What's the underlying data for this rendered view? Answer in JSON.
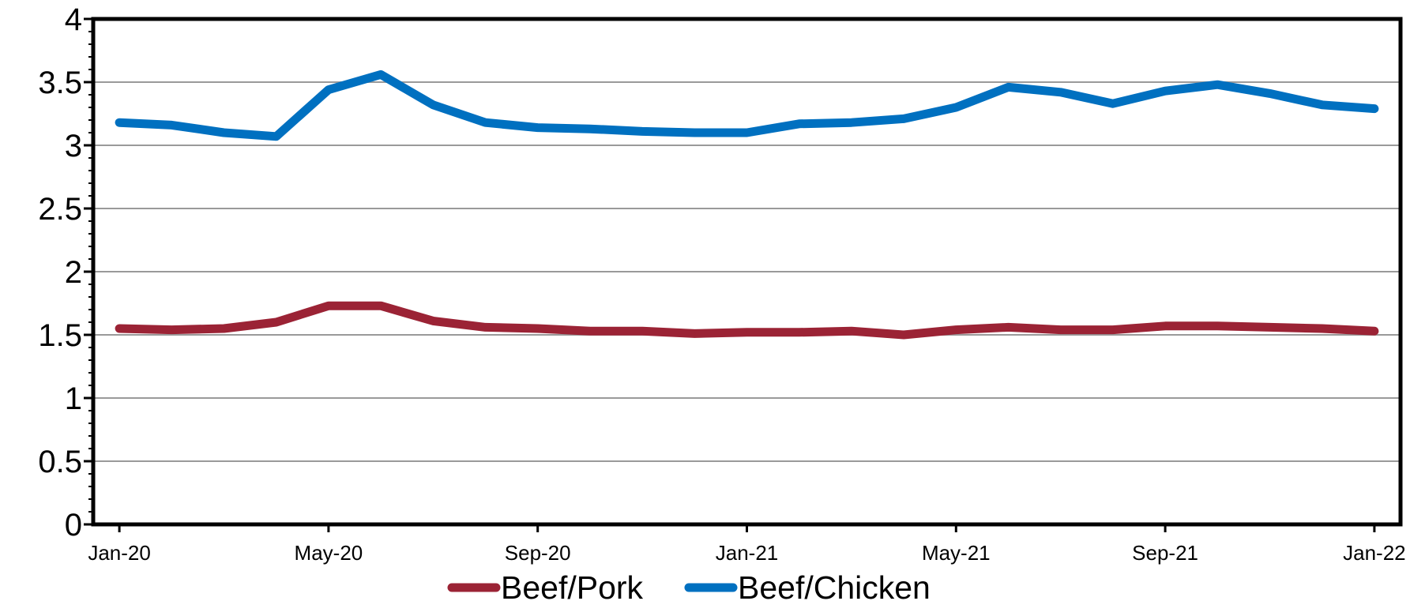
{
  "chart_data": {
    "type": "line",
    "title": "",
    "xlabel": "",
    "ylabel": "",
    "ylim": [
      0,
      4
    ],
    "yticks": [
      "0",
      "0.5",
      "1",
      "1.5",
      "2",
      "2.5",
      "3",
      "3.5",
      "4"
    ],
    "x_tick_labels": [
      "Jan-20",
      "May-20",
      "Sep-20",
      "Jan-21",
      "May-21",
      "Sep-21",
      "Jan-22"
    ],
    "x_tick_dates": [
      "2020-01",
      "2020-05",
      "2020-09",
      "2021-01",
      "2021-05",
      "2021-09",
      "2022-01"
    ],
    "x": [
      "2020-01",
      "2020-02",
      "2020-03",
      "2020-04",
      "2020-05",
      "2020-06",
      "2020-07",
      "2020-08",
      "2020-09",
      "2020-10",
      "2020-11",
      "2020-12",
      "2021-01",
      "2021-02",
      "2021-03",
      "2021-04",
      "2021-05",
      "2021-06",
      "2021-07",
      "2021-08",
      "2021-09",
      "2021-10",
      "2021-11",
      "2021-12",
      "2022-01"
    ],
    "grid": true,
    "legend_position": "bottom",
    "series": [
      {
        "name": "Beef/Pork",
        "color": "#9B2335",
        "values": [
          1.55,
          1.54,
          1.55,
          1.6,
          1.73,
          1.73,
          1.61,
          1.56,
          1.55,
          1.53,
          1.53,
          1.51,
          1.52,
          1.52,
          1.53,
          1.5,
          1.54,
          1.56,
          1.54,
          1.54,
          1.57,
          1.57,
          1.56,
          1.55,
          1.53
        ]
      },
      {
        "name": "Beef/Chicken",
        "color": "#0070C0",
        "values": [
          3.18,
          3.16,
          3.1,
          3.07,
          3.44,
          3.56,
          3.32,
          3.18,
          3.14,
          3.13,
          3.11,
          3.1,
          3.1,
          3.17,
          3.18,
          3.21,
          3.3,
          3.46,
          3.42,
          3.33,
          3.43,
          3.48,
          3.41,
          3.32,
          3.29
        ]
      }
    ]
  }
}
